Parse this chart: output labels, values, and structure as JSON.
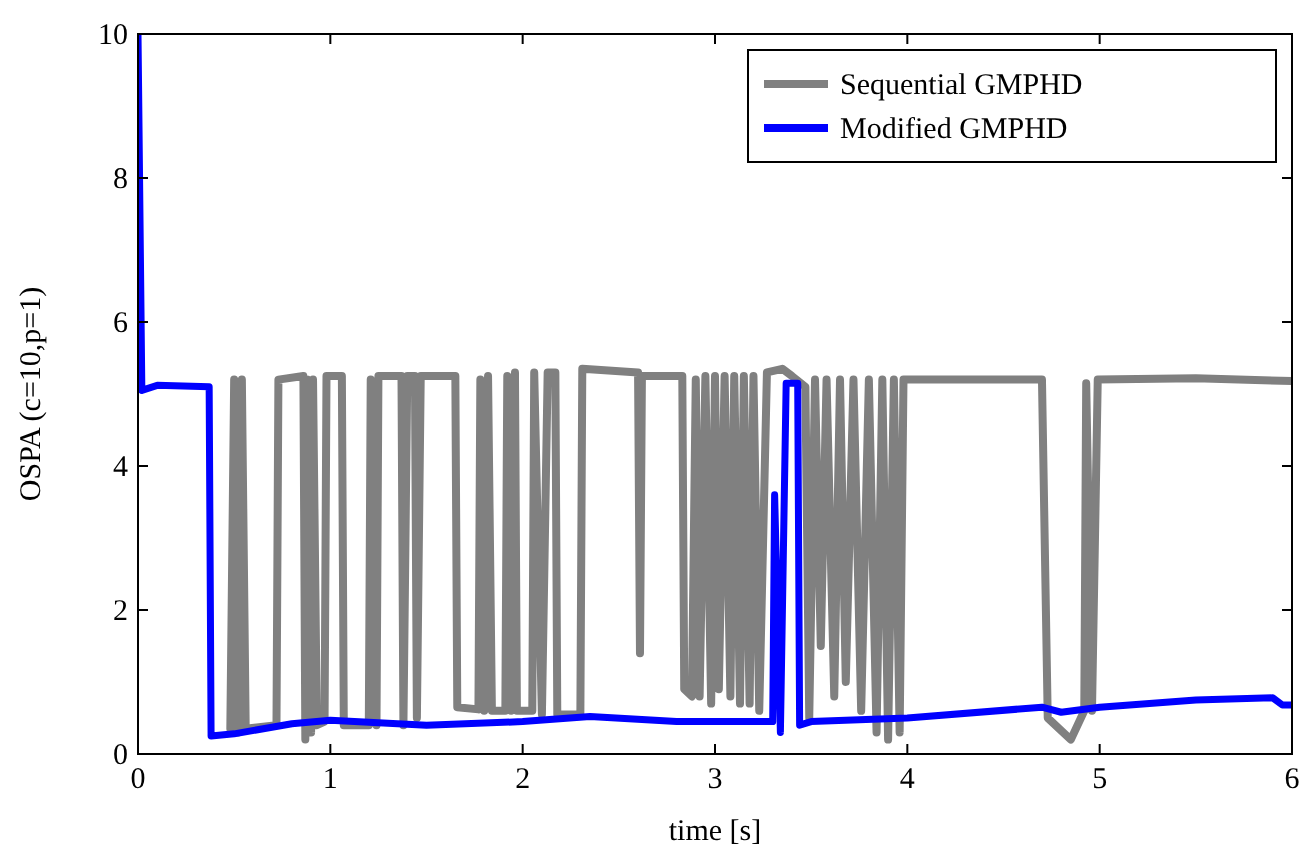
{
  "chart_data": {
    "type": "line",
    "xlabel": "time [s]",
    "ylabel": "OSPA (c=10,p=1)",
    "xlim": [
      0,
      6
    ],
    "xticks": [
      0,
      1,
      2,
      3,
      4,
      5,
      6
    ],
    "ylim": [
      0,
      10
    ],
    "yticks": [
      0,
      2,
      4,
      6,
      8,
      10
    ],
    "legend": "top right",
    "marker": "none",
    "line_style": "solid",
    "grid": false,
    "series": [
      {
        "name": "Sequential GMPHD",
        "color": "#808080",
        "x": [
          0.48,
          0.5,
          0.52,
          0.54,
          0.56,
          0.72,
          0.73,
          0.86,
          0.87,
          0.88,
          0.9,
          0.91,
          0.93,
          0.97,
          0.98,
          1.06,
          1.07,
          1.2,
          1.21,
          1.24,
          1.25,
          1.37,
          1.38,
          1.4,
          1.44,
          1.45,
          1.47,
          1.65,
          1.66,
          1.77,
          1.78,
          1.8,
          1.82,
          1.84,
          1.91,
          1.92,
          1.94,
          1.96,
          1.97,
          2.05,
          2.06,
          2.1,
          2.13,
          2.17,
          2.18,
          2.3,
          2.31,
          2.6,
          2.61,
          2.62,
          2.83,
          2.84,
          2.88,
          2.9,
          2.92,
          2.95,
          2.98,
          3.0,
          3.02,
          3.05,
          3.08,
          3.1,
          3.13,
          3.15,
          3.18,
          3.2,
          3.23,
          3.27,
          3.35,
          3.4,
          3.47,
          3.49,
          3.52,
          3.55,
          3.58,
          3.62,
          3.65,
          3.68,
          3.72,
          3.76,
          3.8,
          3.84,
          3.87,
          3.9,
          3.93,
          3.96,
          3.98,
          4.7,
          4.73,
          4.85,
          4.92,
          4.93,
          4.96,
          4.99,
          5.5,
          6.0
        ],
        "values": [
          0.35,
          5.2,
          0.3,
          5.2,
          0.35,
          0.4,
          5.2,
          5.25,
          0.2,
          5.2,
          0.3,
          5.2,
          0.4,
          0.45,
          5.25,
          5.25,
          0.4,
          0.4,
          5.2,
          0.4,
          5.25,
          5.25,
          0.4,
          5.25,
          5.25,
          0.5,
          5.25,
          5.25,
          0.65,
          0.62,
          5.2,
          0.6,
          5.25,
          0.6,
          0.6,
          5.25,
          0.6,
          5.3,
          0.6,
          0.6,
          5.3,
          0.55,
          5.3,
          5.3,
          0.55,
          0.55,
          5.35,
          5.3,
          1.4,
          5.25,
          5.25,
          0.9,
          0.8,
          5.2,
          0.8,
          5.25,
          0.7,
          5.25,
          0.9,
          5.25,
          0.8,
          5.25,
          0.7,
          5.25,
          0.7,
          5.25,
          0.6,
          5.3,
          5.35,
          5.25,
          5.1,
          0.5,
          5.2,
          1.5,
          5.2,
          0.8,
          5.2,
          1.0,
          5.2,
          0.6,
          5.2,
          0.3,
          5.2,
          0.2,
          5.2,
          0.3,
          5.2,
          5.2,
          0.5,
          0.2,
          0.6,
          5.15,
          0.6,
          5.2,
          5.22,
          5.18
        ]
      },
      {
        "name": "Modified GMPHD",
        "color": "#0000ff",
        "x": [
          0,
          0.02,
          0.1,
          0.37,
          0.38,
          0.5,
          0.8,
          1.0,
          1.5,
          2.0,
          2.35,
          2.8,
          3.3,
          3.31,
          3.34,
          3.37,
          3.43,
          3.44,
          3.5,
          4.0,
          4.7,
          4.8,
          5.0,
          5.5,
          5.9,
          5.95,
          6.0
        ],
        "values": [
          10,
          5.05,
          5.12,
          5.1,
          0.25,
          0.28,
          0.42,
          0.47,
          0.4,
          0.45,
          0.52,
          0.45,
          0.45,
          3.6,
          0.3,
          5.15,
          5.15,
          0.4,
          0.45,
          0.5,
          0.65,
          0.58,
          0.65,
          0.75,
          0.78,
          0.68,
          0.68
        ]
      }
    ]
  }
}
